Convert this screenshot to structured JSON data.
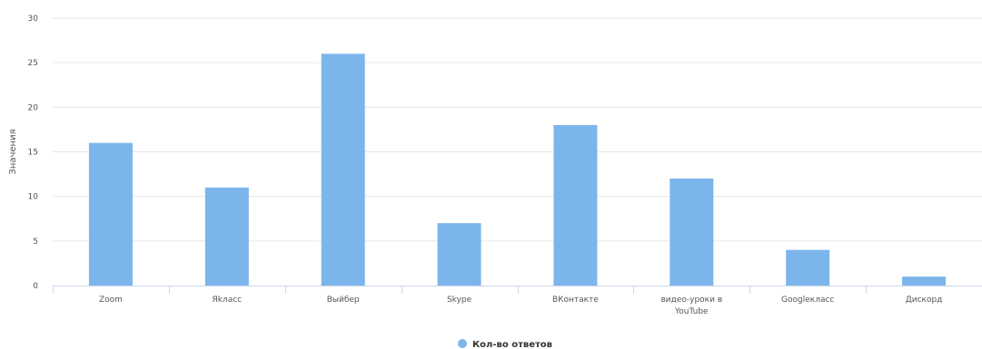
{
  "chart_data": {
    "type": "bar",
    "categories": [
      "Zoom",
      "Яkласс",
      "Выйбер",
      "Skype",
      "ВКонтакте",
      "видео-уроки в YouTube",
      "Googleкласс",
      "Дискорд"
    ],
    "series": [
      {
        "name": "Кол-во ответов",
        "values": [
          16,
          11,
          26,
          7,
          18,
          12,
          4,
          1
        ]
      }
    ],
    "xlabel": "",
    "ylabel": "Значения",
    "ylim": [
      0,
      30
    ],
    "yticks": [
      0,
      5,
      10,
      15,
      20,
      25,
      30
    ],
    "grid": true,
    "legend": "bottom-center",
    "colors": {
      "bar": "#7cb5ec",
      "grid": "#e6e6e6",
      "axis": "#ccd6eb"
    }
  }
}
